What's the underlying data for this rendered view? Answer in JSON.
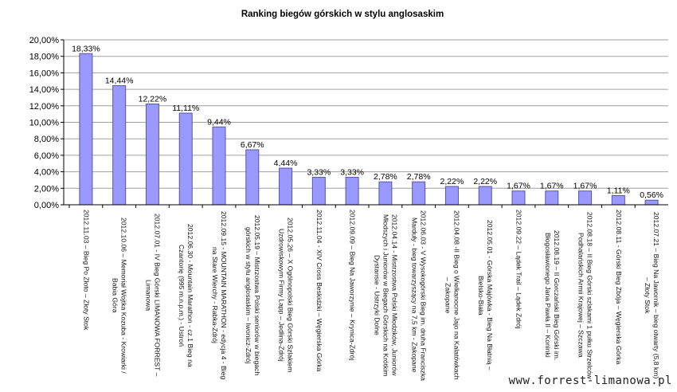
{
  "chart_data": {
    "type": "bar",
    "title": "Ranking biegów górskich w stylu anglosaskim",
    "xlabel": "",
    "ylabel": "",
    "ylim": [
      0,
      20
    ],
    "yticks": [
      "0,00%",
      "2,00%",
      "4,00%",
      "6,00%",
      "8,00%",
      "10,00%",
      "12,00%",
      "14,00%",
      "16,00%",
      "18,00%",
      "20,00%"
    ],
    "grid": true,
    "bar_color": "#9999ff",
    "bar_border": "#5555aa",
    "categories": [
      "2012.11.03 – Bieg Po Złoto – Złoty Stok",
      "2012.10.06 – Memoriał Wojtka Kozuba - Krowiarki / Babia Góra",
      "2012.07.01 - IV Bieg Górski LIMANOWA FORREST – Limanowa",
      "2012.06.30 - Mountain Marathon - cz.1 Bieg na Czantorię (995 m.n.p.m.) - Ustroń",
      "2012.09.15 - MOUNTAIN MARATHON - edycja 4 - Bieg na Stare Wierchy - Rabka-Zdrój",
      "2012.05.19 – Mistrzostwa Polski seniorów w biegach górskich w stylu anglosaskim – Iwonicz-Zdrój",
      "2012.05.26 – X Ogólnopolski Bieg Górski Szlakiem Uzdrowiskowym Firmy Lapp – Jedlina-Zdrój",
      "2012.11.04 - XIV Cross Beskidzki – Węgierska Górka",
      "2012.09.09 – Bieg Na Jaworzynie – Krynica-Zdrój",
      "2012.04.14 - Mistrzostwa Polski Młodzików, Juniorów Młodszych i Juniorów w Biegach Górskich na Krótkim Dystansie - Ustrzyki Dolne",
      "2012.06.03 - V Wysokogórski Bieg im. druha Franciszka Marduły - bieg towarzyszący na 7,5 km - Zakopane",
      "2012.04.08 -II Bieg o Wielkanocne Jajo na Kalatówkach – Zakopane",
      "2012.05.01 - Górska Majówka - Bieg Na Błatnią – Bielsko-Biała",
      "2012.09.22 – Lądek Trail – Lądek Zdrój",
      "2012.08.19 – II Gorczański Bieg Górski im. Błogosławionego Jana Pawła II – Koninki",
      "2012.08.18 – II Bieg Górski szlakami 1 pułku Strzelców Podhalańskich Armii Krajowej – Szczawa",
      "2012.08.11 - Górski Bieg Zbója – Węgierska Górka",
      "2012.07.21 – Bieg Na Jawornik – bieg otwarty (5,8 km) – Złoty Stok"
    ],
    "values": [
      18.33,
      14.44,
      12.22,
      11.11,
      9.44,
      6.67,
      4.44,
      3.33,
      3.33,
      2.78,
      2.78,
      2.22,
      2.22,
      1.67,
      1.67,
      1.67,
      1.11,
      0.56
    ],
    "data_labels": [
      "18,33%",
      "14,44%",
      "12,22%",
      "11,11%",
      "9,44%",
      "6,67%",
      "4,44%",
      "3,33%",
      "3,33%",
      "2,78%",
      "2,78%",
      "2,22%",
      "2,22%",
      "1,67%",
      "1,67%",
      "1,67%",
      "1,11%",
      "0,56%"
    ]
  },
  "watermark": "www.forrest-limanowa.pl"
}
